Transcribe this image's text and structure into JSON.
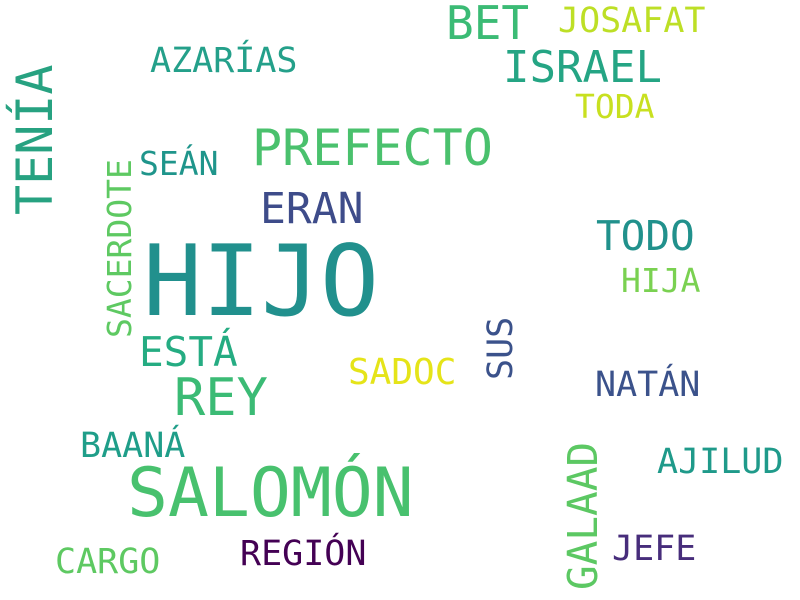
{
  "words": {
    "hijo": {
      "text": "HIJO",
      "color": "#21908d"
    },
    "salomon": {
      "text": "SALOMÓN",
      "color": "#48c16e"
    },
    "prefecto": {
      "text": "PREFECTO",
      "color": "#4ac16d"
    },
    "rey": {
      "text": "REY",
      "color": "#3bbb75"
    },
    "bet": {
      "text": "BET",
      "color": "#3bbb75"
    },
    "israel": {
      "text": "ISRAEL",
      "color": "#25a584"
    },
    "eran": {
      "text": "ERAN",
      "color": "#3e4c8a"
    },
    "todo": {
      "text": "TODO",
      "color": "#21918c"
    },
    "esta": {
      "text": "ESTÁ",
      "color": "#25ac82"
    },
    "tenia": {
      "text": "TENÍA",
      "color": "#27a281"
    },
    "galaad": {
      "text": "GALAAD",
      "color": "#5cc863"
    },
    "josafat": {
      "text": "JOSAFAT",
      "color": "#bddf26"
    },
    "azarias": {
      "text": "AZARÍAS",
      "color": "#24a08a"
    },
    "toda": {
      "text": "TODA",
      "color": "#c8e020"
    },
    "sean": {
      "text": "SEÁN",
      "color": "#1f958b"
    },
    "hija": {
      "text": "HIJA",
      "color": "#7ad151"
    },
    "sacerdote": {
      "text": "SACERDOTE",
      "color": "#5ec962"
    },
    "sadoc": {
      "text": "SADOC",
      "color": "#e5e419"
    },
    "sus": {
      "text": "SUS",
      "color": "#3b528b"
    },
    "natan": {
      "text": "NATÁN",
      "color": "#3b528b"
    },
    "baana": {
      "text": "BAANÁ",
      "color": "#1f9e89"
    },
    "ajilud": {
      "text": "AJILUD",
      "color": "#1f9a8a"
    },
    "jefe": {
      "text": "JEFE",
      "color": "#472d7b"
    },
    "region": {
      "text": "REGIÓN",
      "color": "#440154"
    },
    "cargo": {
      "text": "CARGO",
      "color": "#5ec962"
    }
  }
}
